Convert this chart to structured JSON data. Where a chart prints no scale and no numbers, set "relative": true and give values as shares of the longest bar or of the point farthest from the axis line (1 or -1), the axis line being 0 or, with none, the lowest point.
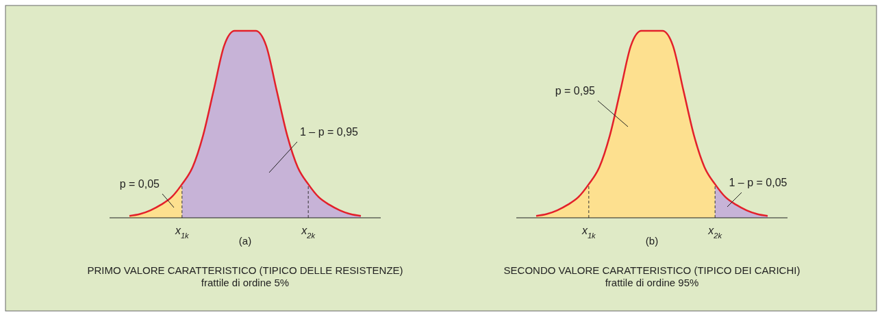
{
  "chart_data": [
    {
      "type": "area",
      "relative": true,
      "title": "PRIMO VALORE CARATTERISTICO (TIPICO DELLE RESISTENZE)",
      "subtitle": "frattile di ordine 5%",
      "xlabel": "(a)",
      "categories": [
        null,
        null,
        null,
        null,
        null,
        "x$_{1k}$",
        null,
        null,
        null,
        null,
        null,
        null,
        null,
        null,
        null,
        null,
        null,
        "x$_{2k}$",
        null,
        null,
        null,
        null,
        null
      ],
      "series": [
        {
          "color": "#fde08f",
          "values": [
            0.01,
            0.02,
            0.04,
            0.07,
            0.11,
            0.18,
            null,
            null,
            null,
            null,
            null,
            null,
            null,
            null,
            null,
            null,
            null,
            null,
            null,
            null,
            null,
            null,
            null
          ]
        },
        {
          "color": "#c7b3d7",
          "values": [
            null,
            null,
            null,
            null,
            null,
            0.18,
            0.27,
            0.44,
            0.68,
            0.92,
            1,
            1,
            1,
            0.92,
            0.68,
            0.44,
            0.27,
            0.18,
            0.11,
            0.07,
            0.04,
            0.02,
            0.01
          ]
        },
        {
          "type": "line",
          "color": "#e3202a",
          "values": [
            0.01,
            0.02,
            0.04,
            0.07,
            0.11,
            0.18,
            0.27,
            0.44,
            0.68,
            0.92,
            1,
            1,
            1,
            0.92,
            0.68,
            0.44,
            0.27,
            0.18,
            0.11,
            0.07,
            0.04,
            0.02,
            0.01
          ]
        }
      ],
      "ref_lines": [
        {
          "axis": "x",
          "value": "x$_{1k}$",
          "line_style": "dashed",
          "color": "#333333"
        },
        {
          "axis": "x",
          "value": "x$_{2k}$",
          "line_style": "dashed",
          "color": "#333333"
        }
      ],
      "annotations": [
        "p = 0,05",
        "1 – p = 0,95"
      ]
    },
    {
      "type": "area",
      "relative": true,
      "title": "SECONDO VALORE CARATTERISTICO (TIPICO DEI CARICHI)",
      "subtitle": "frattile di ordine 95%",
      "xlabel": "(b)",
      "categories": [
        null,
        null,
        null,
        null,
        null,
        "x$_{1k}$",
        null,
        null,
        null,
        null,
        null,
        null,
        null,
        null,
        null,
        null,
        null,
        "x$_{2k}$",
        null,
        null,
        null,
        null,
        null
      ],
      "series": [
        {
          "color": "#fde08f",
          "values": [
            0.01,
            0.02,
            0.04,
            0.07,
            0.11,
            0.18,
            0.27,
            0.44,
            0.68,
            0.92,
            1,
            1,
            1,
            0.92,
            0.68,
            0.44,
            0.27,
            0.18,
            null,
            null,
            null,
            null,
            null
          ]
        },
        {
          "color": "#c7b3d7",
          "values": [
            null,
            null,
            null,
            null,
            null,
            null,
            null,
            null,
            null,
            null,
            null,
            null,
            null,
            null,
            null,
            null,
            null,
            0.18,
            0.11,
            0.07,
            0.04,
            0.02,
            0.01
          ]
        },
        {
          "type": "line",
          "color": "#e3202a",
          "values": [
            0.01,
            0.02,
            0.04,
            0.07,
            0.11,
            0.18,
            0.27,
            0.44,
            0.68,
            0.92,
            1,
            1,
            1,
            0.92,
            0.68,
            0.44,
            0.27,
            0.18,
            0.11,
            0.07,
            0.04,
            0.02,
            0.01
          ]
        }
      ],
      "ref_lines": [
        {
          "axis": "x",
          "value": "x$_{1k}$",
          "line_style": "dashed",
          "color": "#333333"
        },
        {
          "axis": "x",
          "value": "x$_{2k}$",
          "line_style": "dashed",
          "color": "#333333"
        }
      ],
      "annotations": [
        "p = 0,95",
        "1 – p = 0,05"
      ]
    }
  ]
}
